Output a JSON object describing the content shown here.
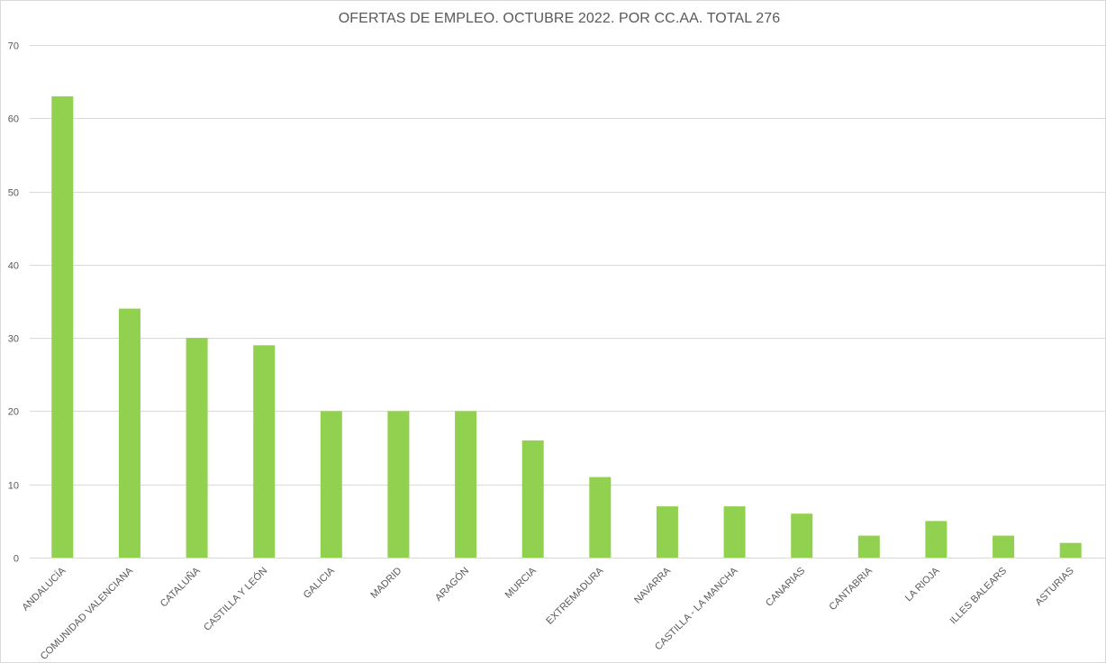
{
  "chart_data": {
    "type": "bar",
    "title": "OFERTAS DE EMPLEO. OCTUBRE 2022. POR CC.AA. TOTAL 276",
    "xlabel": "",
    "ylabel": "",
    "categories": [
      "ANDALUCÍA",
      "COMUNIDAD VALENCIANA",
      "CATALUÑA",
      "CASTILLA Y LEÓN",
      "GALICIA",
      "MADRID",
      "ARAGÓN",
      "MURCIA",
      "EXTREMADURA",
      "NAVARRA",
      "CASTILLA - LA MANCHA",
      "CANARIAS",
      "CANTABRIA",
      "LA RIOJA",
      "ILLES BALEARS",
      "ASTURIAS"
    ],
    "values": [
      63,
      34,
      30,
      29,
      20,
      20,
      20,
      16,
      11,
      7,
      7,
      6,
      3,
      5,
      3,
      2
    ],
    "ylim": [
      0,
      70
    ],
    "yticks": [
      0,
      10,
      20,
      30,
      40,
      50,
      60,
      70
    ],
    "grid": true,
    "legend": "none",
    "colors": {
      "bar": "#92d050",
      "grid": "#d9d9d9",
      "text": "#595959"
    }
  }
}
